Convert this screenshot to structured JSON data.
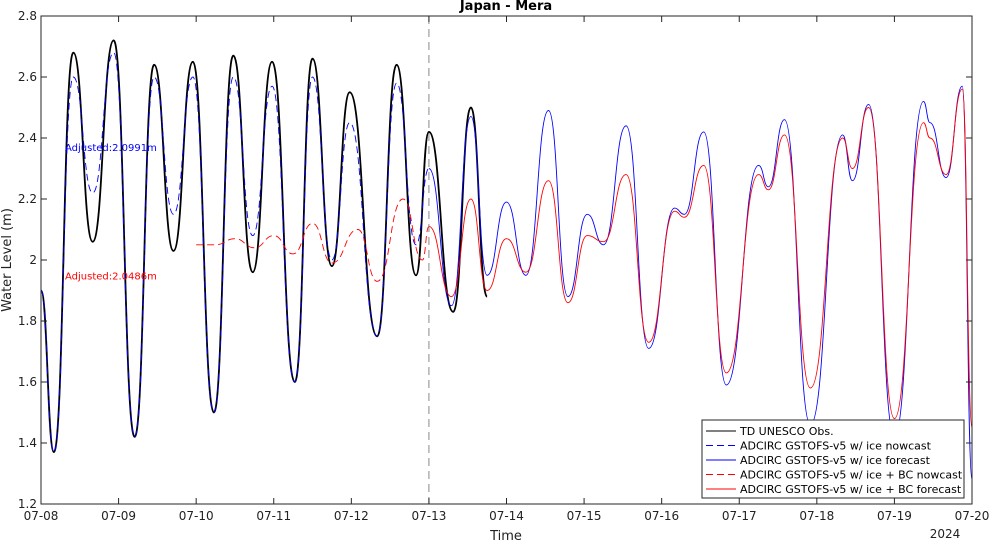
{
  "chart_data": {
    "type": "line",
    "title": "Japan - Mera",
    "xlabel": "Time",
    "ylabel": "Water Level (m)",
    "year_label": "2024",
    "xlim": [
      "07-08",
      "07-20"
    ],
    "ylim": [
      1.2,
      2.8
    ],
    "x_ticks": [
      "07-08",
      "07-09",
      "07-10",
      "07-11",
      "07-12",
      "07-13",
      "07-14",
      "07-15",
      "07-16",
      "07-17",
      "07-18",
      "07-19",
      "07-20"
    ],
    "y_ticks": [
      "1.2",
      "1.4",
      "1.6",
      "1.8",
      "2",
      "2.2",
      "2.4",
      "2.6",
      "2.8"
    ],
    "grid": false,
    "legend_position": "bottom-right",
    "nowcast_forecast_boundary": "07-13",
    "annotations": [
      {
        "text": "Adjusted:2.0991m",
        "color": "#0000ff",
        "x": "07-08",
        "y": 2.37
      },
      {
        "text": "Adjusted:2.0486m",
        "color": "#ff0000",
        "x": "07-08",
        "y": 1.95
      }
    ],
    "series": [
      {
        "name": "TD UNESCO Obs.",
        "color": "#000000",
        "style": "solid",
        "points": [
          [
            "07-08 00:00",
            1.9
          ],
          [
            "07-08 04:00",
            1.37
          ],
          [
            "07-08 10:00",
            2.68
          ],
          [
            "07-08 16:00",
            2.06
          ],
          [
            "07-08 22:30",
            2.72
          ],
          [
            "07-09 05:00",
            1.42
          ],
          [
            "07-09 11:00",
            2.64
          ],
          [
            "07-09 17:00",
            2.03
          ],
          [
            "07-09 23:00",
            2.65
          ],
          [
            "07-10 05:30",
            1.5
          ],
          [
            "07-10 11:30",
            2.67
          ],
          [
            "07-10 17:30",
            1.96
          ],
          [
            "07-10 23:30",
            2.65
          ],
          [
            "07-11 06:30",
            1.6
          ],
          [
            "07-11 12:00",
            2.66
          ],
          [
            "07-11 18:00",
            1.98
          ],
          [
            "07-11 23:30",
            2.55
          ],
          [
            "07-12 08:00",
            1.75
          ],
          [
            "07-12 14:00",
            2.64
          ],
          [
            "07-12 20:00",
            1.95
          ],
          [
            "07-13 00:00",
            2.42
          ],
          [
            "07-13 07:30",
            1.83
          ],
          [
            "07-13 13:00",
            2.5
          ],
          [
            "07-13 18:00",
            1.88
          ]
        ]
      },
      {
        "name": "ADCIRC GSTOFS-v5 w/ ice nowcast",
        "color": "#0000ff",
        "style": "dashed",
        "points": [
          [
            "07-08 00:00",
            1.9
          ],
          [
            "07-08 04:00",
            1.37
          ],
          [
            "07-08 10:00",
            2.6
          ],
          [
            "07-08 16:00",
            2.22
          ],
          [
            "07-08 22:30",
            2.68
          ],
          [
            "07-09 05:00",
            1.42
          ],
          [
            "07-09 11:00",
            2.6
          ],
          [
            "07-09 17:00",
            2.15
          ],
          [
            "07-09 23:00",
            2.6
          ],
          [
            "07-10 05:30",
            1.5
          ],
          [
            "07-10 11:30",
            2.6
          ],
          [
            "07-10 17:30",
            2.08
          ],
          [
            "07-10 23:30",
            2.57
          ],
          [
            "07-11 06:30",
            1.6
          ],
          [
            "07-11 12:00",
            2.6
          ],
          [
            "07-11 18:00",
            2.0
          ],
          [
            "07-11 23:30",
            2.45
          ],
          [
            "07-12 08:00",
            1.75
          ],
          [
            "07-12 14:00",
            2.58
          ],
          [
            "07-12 20:00",
            2.05
          ],
          [
            "07-13 00:00",
            2.3
          ]
        ]
      },
      {
        "name": "ADCIRC GSTOFS-v5 w/ ice forecast",
        "color": "#0000ff",
        "style": "solid",
        "points": [
          [
            "07-13 00:00",
            2.3
          ],
          [
            "07-13 07:00",
            1.85
          ],
          [
            "07-13 13:00",
            2.47
          ],
          [
            "07-13 18:00",
            1.95
          ],
          [
            "07-14 00:00",
            2.19
          ],
          [
            "07-14 06:00",
            1.95
          ],
          [
            "07-14 13:00",
            2.49
          ],
          [
            "07-14 19:00",
            1.88
          ],
          [
            "07-15 01:00",
            2.15
          ],
          [
            "07-15 06:00",
            2.05
          ],
          [
            "07-15 13:00",
            2.44
          ],
          [
            "07-15 20:00",
            1.71
          ],
          [
            "07-16 04:00",
            2.17
          ],
          [
            "07-16 07:00",
            2.15
          ],
          [
            "07-16 13:00",
            2.42
          ],
          [
            "07-16 20:00",
            1.59
          ],
          [
            "07-17 06:00",
            2.31
          ],
          [
            "07-17 09:00",
            2.24
          ],
          [
            "07-17 14:00",
            2.46
          ],
          [
            "07-17 22:00",
            1.46
          ],
          [
            "07-18 08:00",
            2.41
          ],
          [
            "07-18 11:00",
            2.26
          ],
          [
            "07-18 16:00",
            2.51
          ],
          [
            "07-19 00:00",
            1.42
          ],
          [
            "07-19 09:00",
            2.52
          ],
          [
            "07-19 11:00",
            2.45
          ],
          [
            "07-19 16:00",
            2.27
          ],
          [
            "07-19 21:00",
            2.57
          ],
          [
            "07-20 00:00",
            1.28
          ]
        ]
      },
      {
        "name": "ADCIRC GSTOFS-v5 w/ ice + BC nowcast",
        "color": "#ff0000",
        "style": "dashed",
        "points": [
          [
            "07-10 00:00",
            2.05
          ],
          [
            "07-10 06:00",
            2.05
          ],
          [
            "07-10 12:00",
            2.07
          ],
          [
            "07-10 18:00",
            2.04
          ],
          [
            "07-11 00:00",
            2.08
          ],
          [
            "07-11 06:00",
            2.02
          ],
          [
            "07-11 12:00",
            2.12
          ],
          [
            "07-11 18:00",
            1.99
          ],
          [
            "07-12 02:00",
            2.1
          ],
          [
            "07-12 08:00",
            1.93
          ],
          [
            "07-12 16:00",
            2.2
          ],
          [
            "07-12 22:00",
            2.0
          ],
          [
            "07-13 00:00",
            2.11
          ]
        ]
      },
      {
        "name": "ADCIRC GSTOFS-v5 w/ ice + BC forecast",
        "color": "#ff0000",
        "style": "solid",
        "points": [
          [
            "07-13 00:00",
            2.11
          ],
          [
            "07-13 07:00",
            1.88
          ],
          [
            "07-13 13:00",
            2.2
          ],
          [
            "07-13 18:00",
            1.9
          ],
          [
            "07-14 00:00",
            2.07
          ],
          [
            "07-14 06:00",
            1.96
          ],
          [
            "07-14 13:00",
            2.26
          ],
          [
            "07-14 19:00",
            1.86
          ],
          [
            "07-15 01:00",
            2.08
          ],
          [
            "07-15 06:00",
            2.06
          ],
          [
            "07-15 13:00",
            2.28
          ],
          [
            "07-15 20:00",
            1.73
          ],
          [
            "07-16 04:00",
            2.16
          ],
          [
            "07-16 07:00",
            2.14
          ],
          [
            "07-16 13:00",
            2.31
          ],
          [
            "07-16 20:00",
            1.63
          ],
          [
            "07-17 06:00",
            2.28
          ],
          [
            "07-17 09:00",
            2.23
          ],
          [
            "07-17 14:00",
            2.41
          ],
          [
            "07-17 22:00",
            1.58
          ],
          [
            "07-18 08:00",
            2.4
          ],
          [
            "07-18 11:00",
            2.3
          ],
          [
            "07-18 16:00",
            2.5
          ],
          [
            "07-19 00:00",
            1.48
          ],
          [
            "07-19 09:00",
            2.45
          ],
          [
            "07-19 11:00",
            2.4
          ],
          [
            "07-19 16:00",
            2.28
          ],
          [
            "07-19 21:00",
            2.56
          ],
          [
            "07-20 00:00",
            1.45
          ]
        ]
      }
    ]
  }
}
